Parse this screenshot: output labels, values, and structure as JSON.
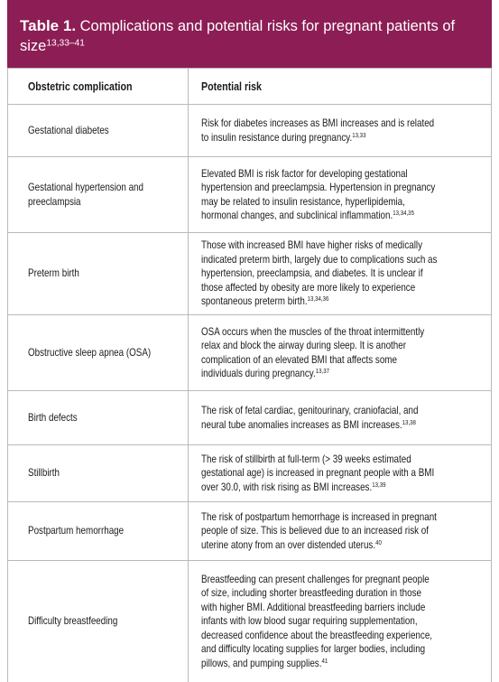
{
  "header": {
    "label": "Table 1.",
    "title": "Complications and potential risks for pregnant patients of size",
    "refs": "13,33–41"
  },
  "table": {
    "columns": [
      "Obstetric complication",
      "Potential risk"
    ],
    "rows": [
      {
        "complication": "Gestational diabetes",
        "risk": "Risk for diabetes increases as BMI increases and is related to insulin resistance during pregnancy.",
        "refs": "13,33"
      },
      {
        "complication": "Gestational hypertension and preeclampsia",
        "risk": "Elevated BMI is risk factor for developing gestational hypertension and preeclampsia. Hypertension in pregnancy may be related to insulin resistance, hyperlipidemia, hormonal changes, and subclinical inflammation.",
        "refs": "13,34,35"
      },
      {
        "complication": "Preterm birth",
        "risk": "Those with increased BMI have higher risks of medically indicated preterm birth, largely due to complications such as hypertension, preeclampsia, and diabetes. It is unclear if those affected by obesity are more likely to experience spontaneous preterm birth.",
        "refs": "13,34,36"
      },
      {
        "complication": "Obstructive sleep apnea (OSA)",
        "risk": "OSA occurs when the muscles of the throat intermittently relax and block the airway during sleep. It is another complication of an elevated BMI that affects some individuals during pregnancy.",
        "refs": "13,37"
      },
      {
        "complication": "Birth defects",
        "risk": "The risk of fetal cardiac, genitourinary, craniofacial, and neural tube anomalies increases as BMI increases.",
        "refs": "13,38"
      },
      {
        "complication": "Stillbirth",
        "risk": "The risk of stillbirth at full-term (> 39 weeks estimated gestational age) is increased in pregnant people with a BMI over 30.0, with risk rising as BMI increases.",
        "refs": "13,39"
      },
      {
        "complication": "Postpartum hemorrhage",
        "risk": "The risk of postpartum hemorrhage is increased in pregnant people of size. This is believed due to an increased risk of uterine atony from an over distended uterus.",
        "refs": "40"
      },
      {
        "complication": "Difficulty breastfeeding",
        "risk": "Breastfeeding can present challenges for pregnant people of size, including shorter breastfeeding duration in those with higher BMI. Additional breastfeeding barriers include infants with low blood sugar requiring supplementation, decreased confidence about the breastfeeding experience, and difficulty locating supplies for larger bodies, including pillows, and pumping supplies.",
        "refs": "41"
      }
    ]
  }
}
